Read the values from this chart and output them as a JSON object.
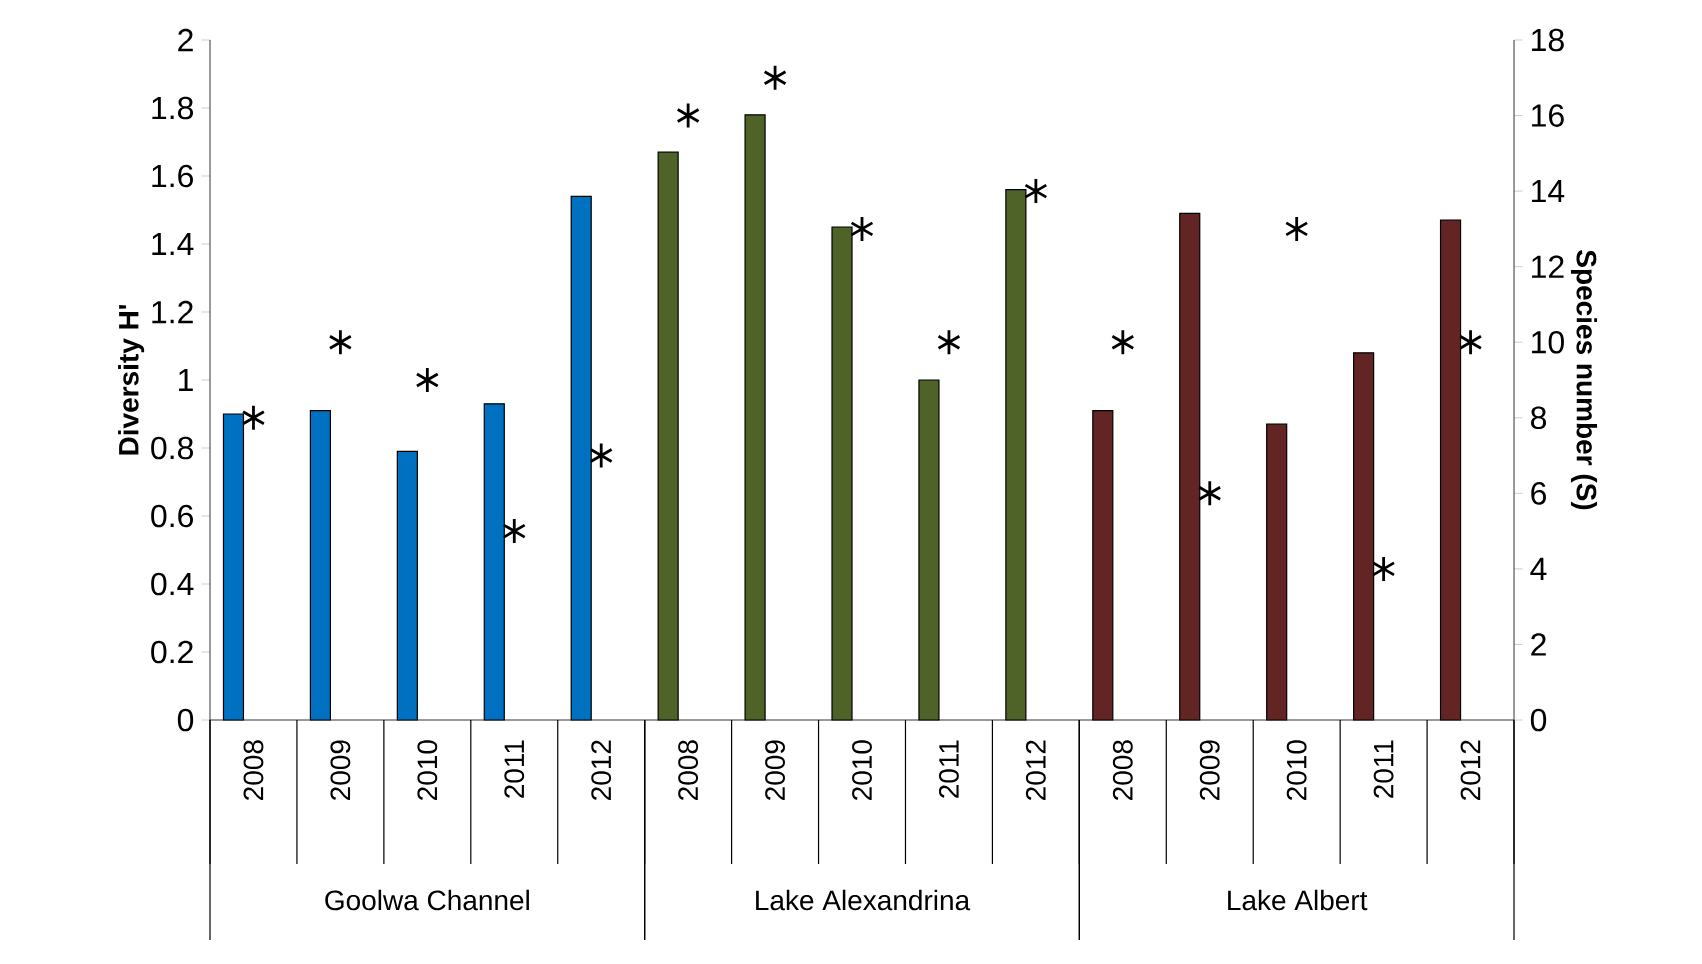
{
  "chart_data": {
    "type": "bar",
    "ylabel": "Diversity H'",
    "y2label": "Species number (S)",
    "categories": [
      "2008",
      "2009",
      "2010",
      "2011",
      "2012",
      "2008",
      "2009",
      "2010",
      "2011",
      "2012",
      "2008",
      "2009",
      "2010",
      "2011",
      "2012"
    ],
    "annotations": [
      "Goolwa Channel",
      "Lake Alexandrina",
      "Lake Albert"
    ],
    "series": [
      {
        "colors": [
          "#0070c0",
          "#0070c0",
          "#0070c0",
          "#0070c0",
          "#0070c0",
          "#4f6228",
          "#4f6228",
          "#4f6228",
          "#4f6228",
          "#4f6228",
          "#632523",
          "#632523",
          "#632523",
          "#632523",
          "#632523"
        ],
        "values": [
          0.9,
          0.91,
          0.79,
          0.93,
          1.54,
          1.67,
          1.78,
          1.45,
          1.0,
          1.56,
          0.91,
          1.49,
          0.87,
          1.08,
          1.47
        ]
      },
      {
        "type": "scatter",
        "axis": "y2",
        "color": "#000000",
        "marker": "cross",
        "values": [
          8,
          10,
          9,
          5,
          7,
          16,
          17,
          13,
          10,
          14,
          10,
          6,
          13,
          4,
          10
        ]
      }
    ],
    "ylim": [
      0,
      2
    ],
    "yticks": [
      0,
      0.2,
      0.4,
      0.6,
      0.8,
      1,
      1.2,
      1.4,
      1.6,
      1.8,
      2
    ],
    "y2lim": [
      0,
      18
    ],
    "y2ticks": [
      0,
      2,
      4,
      6,
      8,
      10,
      12,
      14,
      16,
      18
    ]
  }
}
